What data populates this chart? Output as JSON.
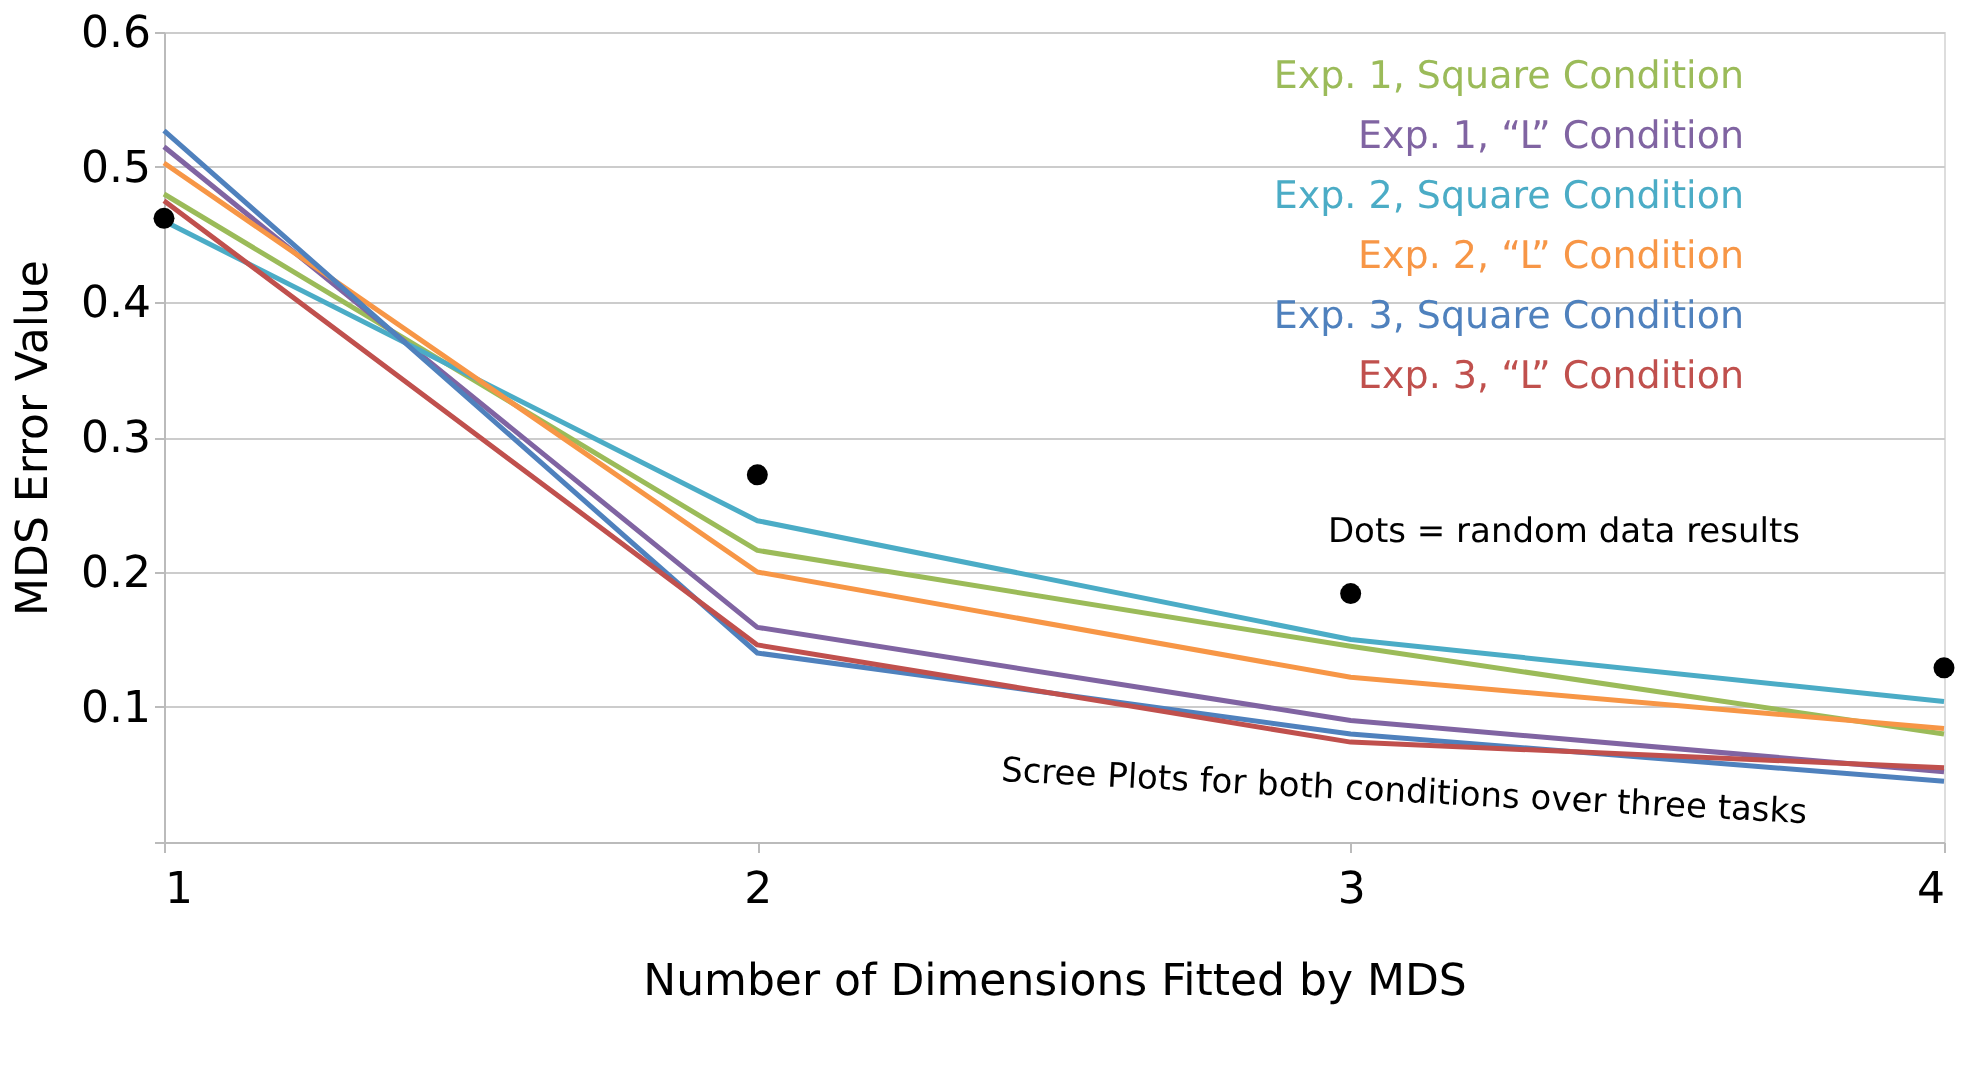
{
  "chart_data": {
    "type": "line",
    "xlabel": "Number of Dimensions Fitted by MDS",
    "ylabel": "MDS Error Value",
    "x": [
      1,
      2,
      3,
      4
    ],
    "xlim": [
      1,
      4
    ],
    "xticks": [
      1,
      2,
      3,
      4
    ],
    "ylim": [
      0,
      0.6
    ],
    "yticks": [
      {
        "value": 0,
        "label": null
      },
      0.1,
      0.2,
      0.3,
      0.4,
      0.5,
      0.6
    ],
    "grid": "y",
    "legend": "top right",
    "line_style": "solid",
    "series": [
      {
        "name": "Exp. 1, Square Condition",
        "color": "#9bbb59",
        "values": [
          0.48,
          0.216,
          0.145,
          0.08
        ]
      },
      {
        "name": "Exp. 1, “L” Condition",
        "color": "#8064a2",
        "values": [
          0.515,
          0.159,
          0.09,
          0.052
        ]
      },
      {
        "name": "Exp. 2, Square Condition",
        "color": "#4bacc6",
        "values": [
          0.46,
          0.238,
          0.15,
          0.104
        ]
      },
      {
        "name": "Exp. 2, “L” Condition",
        "color": "#f79646",
        "values": [
          0.503,
          0.2,
          0.122,
          0.084
        ]
      },
      {
        "name": "Exp. 3, Square Condition",
        "color": "#4f81bd",
        "values": [
          0.527,
          0.14,
          0.08,
          0.045
        ]
      },
      {
        "name": "Exp. 3, “L” Condition",
        "color": "#c0504d",
        "values": [
          0.475,
          0.146,
          0.074,
          0.055
        ]
      },
      {
        "type": "scatter",
        "marker": "circle",
        "color": "#000000",
        "values": [
          0.462,
          0.272,
          0.184,
          0.129
        ]
      }
    ],
    "annotations": [
      "Dots = random data results",
      "Scree Plots for both conditions over three tasks"
    ]
  }
}
